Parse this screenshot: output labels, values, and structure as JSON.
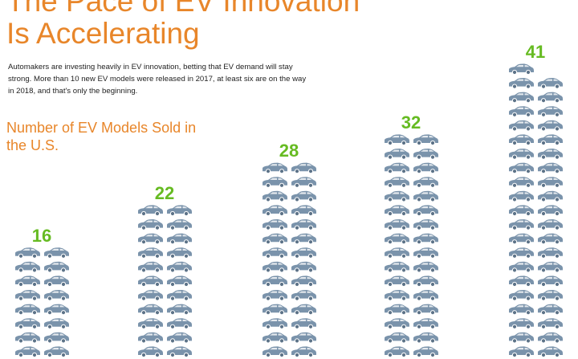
{
  "chart_data": {
    "type": "pictogram",
    "title": [
      "The Pace of EV Innovation",
      "Is Accelerating"
    ],
    "subtitle": "Automakers are investing heavily in EV innovation, betting that EV demand will stay strong. More than 10 new EV models were released in 2017, at least six are on the way in 2018, and that's only the beginning.",
    "chart_title": "Number of EV Models Sold in the U.S.",
    "categories": [
      null,
      null,
      null,
      null,
      null
    ],
    "values": [
      16,
      22,
      28,
      32,
      41
    ],
    "color": "#7a93ab",
    "label_color": "#66bb22"
  }
}
